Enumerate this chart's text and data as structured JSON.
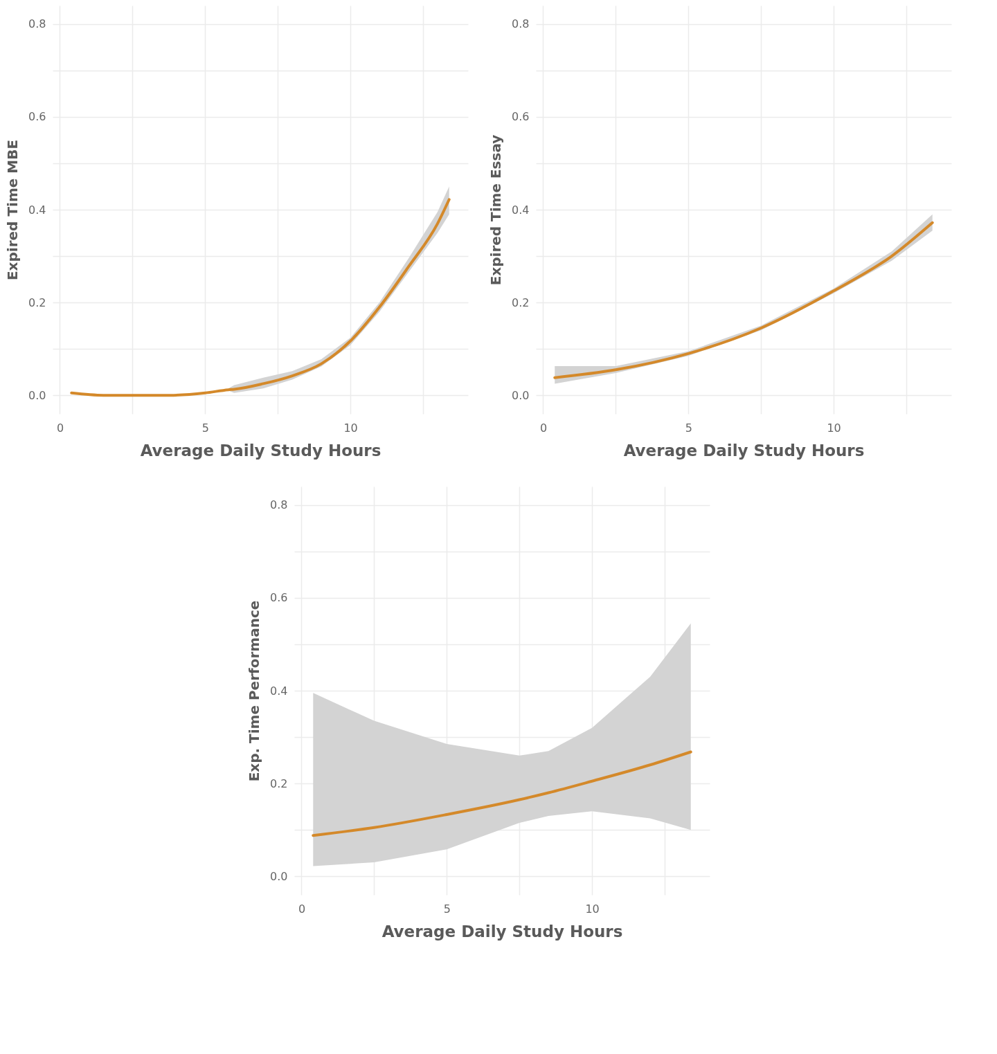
{
  "chart_data": [
    {
      "type": "line",
      "xlabel": "Average Daily Study Hours",
      "ylabel": "Expired Time MBE",
      "xlim": [
        -0.25,
        14.05
      ],
      "ylim": [
        -0.04,
        0.84
      ],
      "xticks": [
        0,
        {
          "value": 2.5,
          "label": null
        },
        5,
        {
          "value": 7.5,
          "label": null
        },
        10,
        {
          "value": 12.5,
          "label": null
        }
      ],
      "yticks": [
        {
          "value": 0,
          "label": "0.0"
        },
        {
          "value": 0.1,
          "label": null
        },
        0.2,
        {
          "value": 0.3,
          "label": null
        },
        0.4,
        {
          "value": 0.5,
          "label": null
        },
        0.6,
        {
          "value": 0.7,
          "label": null
        },
        0.8
      ],
      "grid": true,
      "x": [
        0.4,
        1.5,
        2.5,
        3.8,
        5,
        5.8,
        6,
        7,
        8,
        9,
        10,
        11,
        12,
        13,
        13.4
      ],
      "series": [
        {
          "color": "#d4892a",
          "values": [
            0.005,
            0,
            0,
            0,
            0.005,
            0.012,
            0.013,
            0.025,
            0.042,
            0.068,
            0.117,
            0.19,
            0.277,
            0.37,
            0.422
          ],
          "lower": [
            null,
            null,
            null,
            null,
            null,
            0.01,
            0.005,
            0.015,
            0.034,
            0.062,
            0.108,
            0.18,
            0.265,
            0.35,
            0.39
          ],
          "upper": [
            null,
            null,
            null,
            null,
            null,
            0.015,
            0.022,
            0.038,
            0.052,
            0.078,
            0.124,
            0.2,
            0.295,
            0.395,
            0.45
          ]
        }
      ]
    },
    {
      "type": "line",
      "xlabel": "Average Daily Study Hours",
      "ylabel": "Expired Time Essay",
      "xlim": [
        -0.25,
        14.05
      ],
      "ylim": [
        -0.04,
        0.84
      ],
      "xticks": [
        0,
        {
          "value": 2.5,
          "label": null
        },
        5,
        {
          "value": 7.5,
          "label": null
        },
        10,
        {
          "value": 12.5,
          "label": null
        }
      ],
      "yticks": [
        {
          "value": 0,
          "label": "0.0"
        },
        {
          "value": 0.1,
          "label": null
        },
        0.2,
        {
          "value": 0.3,
          "label": null
        },
        0.4,
        {
          "value": 0.5,
          "label": null
        },
        0.6,
        {
          "value": 0.7,
          "label": null
        },
        0.8
      ],
      "grid": true,
      "x": [
        0.4,
        2.5,
        5,
        7.5,
        10,
        12,
        13.4
      ],
      "series": [
        {
          "color": "#d4892a",
          "values": [
            0.038,
            0.055,
            0.09,
            0.145,
            0.225,
            0.3,
            0.372
          ],
          "lower": [
            0.025,
            0.048,
            0.085,
            0.14,
            0.22,
            0.29,
            0.355
          ],
          "upper": [
            0.063,
            0.063,
            0.095,
            0.15,
            0.23,
            0.31,
            0.39
          ]
        }
      ]
    },
    {
      "type": "line",
      "xlabel": "Average Daily Study Hours",
      "ylabel": "Exp. Time Performance",
      "xlim": [
        -0.25,
        14.05
      ],
      "ylim": [
        -0.04,
        0.84
      ],
      "xticks": [
        0,
        {
          "value": 2.5,
          "label": null
        },
        5,
        {
          "value": 7.5,
          "label": null
        },
        10,
        {
          "value": 12.5,
          "label": null
        }
      ],
      "yticks": [
        {
          "value": 0,
          "label": "0.0"
        },
        {
          "value": 0.1,
          "label": null
        },
        0.2,
        {
          "value": 0.3,
          "label": null
        },
        0.4,
        {
          "value": 0.5,
          "label": null
        },
        0.6,
        {
          "value": 0.7,
          "label": null
        },
        0.8
      ],
      "grid": true,
      "x": [
        0.4,
        2.5,
        5,
        7.5,
        8.5,
        10,
        12,
        13.4
      ],
      "series": [
        {
          "color": "#d4892a",
          "values": [
            0.088,
            0.105,
            0.133,
            0.165,
            0.18,
            0.205,
            0.24,
            0.268
          ],
          "lower": [
            0.022,
            0.03,
            0.058,
            0.115,
            0.13,
            0.14,
            0.125,
            0.1
          ],
          "upper": [
            0.395,
            0.335,
            0.285,
            0.26,
            0.27,
            0.32,
            0.43,
            0.545
          ]
        }
      ]
    }
  ]
}
